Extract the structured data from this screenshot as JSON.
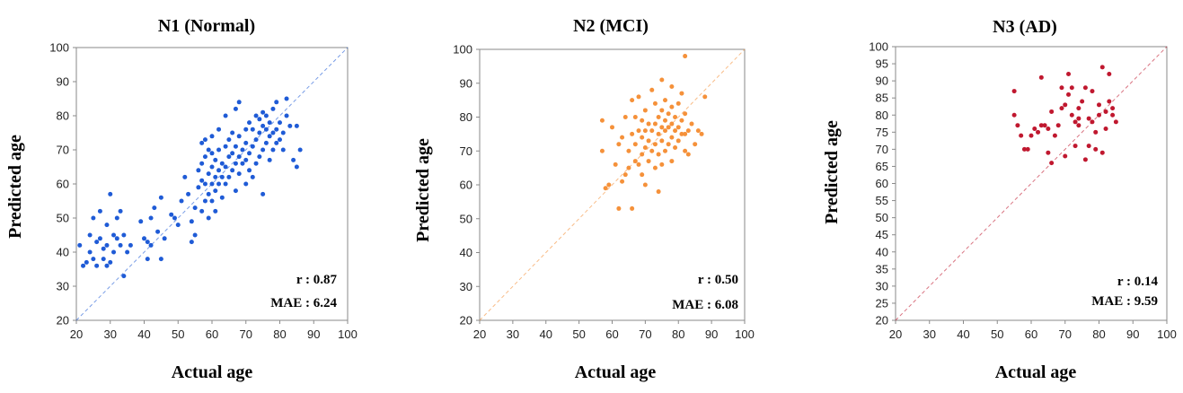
{
  "chart_data": [
    {
      "type": "scatter",
      "title": "N1 (Normal)",
      "xlabel": "Actual age",
      "ylabel": "Predicted age",
      "xlim": [
        20,
        100
      ],
      "ylim": [
        20,
        100
      ],
      "xticks": [
        20,
        30,
        40,
        50,
        60,
        70,
        80,
        90,
        100
      ],
      "yticks": [
        20,
        30,
        40,
        50,
        60,
        70,
        80,
        90,
        100
      ],
      "reference_line": "y = x (dashed)",
      "color": "#1f5bd6",
      "stats": {
        "r": "r : 0.87",
        "mae": "MAE : 6.24"
      },
      "points": [
        [
          21,
          42
        ],
        [
          22,
          36
        ],
        [
          23,
          37
        ],
        [
          24,
          40
        ],
        [
          24,
          45
        ],
        [
          25,
          50
        ],
        [
          25,
          38
        ],
        [
          26,
          43
        ],
        [
          26,
          36
        ],
        [
          27,
          52
        ],
        [
          27,
          44
        ],
        [
          28,
          41
        ],
        [
          28,
          38
        ],
        [
          29,
          42
        ],
        [
          29,
          48
        ],
        [
          29,
          36
        ],
        [
          30,
          57
        ],
        [
          30,
          37
        ],
        [
          31,
          40
        ],
        [
          31,
          45
        ],
        [
          32,
          50
        ],
        [
          32,
          44
        ],
        [
          33,
          52
        ],
        [
          33,
          42
        ],
        [
          34,
          45
        ],
        [
          34,
          33
        ],
        [
          35,
          40
        ],
        [
          36,
          42
        ],
        [
          39,
          49
        ],
        [
          40,
          44
        ],
        [
          41,
          38
        ],
        [
          41,
          43
        ],
        [
          42,
          50
        ],
        [
          42,
          42
        ],
        [
          43,
          53
        ],
        [
          44,
          46
        ],
        [
          45,
          38
        ],
        [
          45,
          56
        ],
        [
          46,
          44
        ],
        [
          48,
          51
        ],
        [
          49,
          50
        ],
        [
          50,
          48
        ],
        [
          51,
          55
        ],
        [
          52,
          62
        ],
        [
          53,
          57
        ],
        [
          54,
          49
        ],
        [
          54,
          43
        ],
        [
          55,
          45
        ],
        [
          55,
          53
        ],
        [
          56,
          59
        ],
        [
          56,
          64
        ],
        [
          57,
          52
        ],
        [
          57,
          61
        ],
        [
          57,
          66
        ],
        [
          57,
          72
        ],
        [
          58,
          55
        ],
        [
          58,
          60
        ],
        [
          58,
          68
        ],
        [
          58,
          73
        ],
        [
          59,
          50
        ],
        [
          59,
          57
        ],
        [
          59,
          63
        ],
        [
          59,
          70
        ],
        [
          60,
          55
        ],
        [
          60,
          60
        ],
        [
          60,
          65
        ],
        [
          60,
          69
        ],
        [
          60,
          74
        ],
        [
          61,
          52
        ],
        [
          61,
          58
        ],
        [
          61,
          62
        ],
        [
          61,
          67
        ],
        [
          62,
          60
        ],
        [
          62,
          64
        ],
        [
          62,
          70
        ],
        [
          62,
          76
        ],
        [
          63,
          56
        ],
        [
          63,
          62
        ],
        [
          63,
          66
        ],
        [
          64,
          60
        ],
        [
          64,
          65
        ],
        [
          64,
          71
        ],
        [
          64,
          80
        ],
        [
          65,
          62
        ],
        [
          65,
          68
        ],
        [
          65,
          73
        ],
        [
          66,
          64
        ],
        [
          66,
          69
        ],
        [
          66,
          75
        ],
        [
          67,
          58
        ],
        [
          67,
          66
        ],
        [
          67,
          71
        ],
        [
          67,
          82
        ],
        [
          68,
          63
        ],
        [
          68,
          68
        ],
        [
          68,
          74
        ],
        [
          68,
          84
        ],
        [
          69,
          66
        ],
        [
          69,
          70
        ],
        [
          70,
          60
        ],
        [
          70,
          67
        ],
        [
          70,
          72
        ],
        [
          70,
          76
        ],
        [
          71,
          64
        ],
        [
          71,
          69
        ],
        [
          71,
          78
        ],
        [
          72,
          62
        ],
        [
          72,
          71
        ],
        [
          72,
          76
        ],
        [
          73,
          66
        ],
        [
          73,
          73
        ],
        [
          73,
          80
        ],
        [
          74,
          68
        ],
        [
          74,
          75
        ],
        [
          74,
          79
        ],
        [
          75,
          57
        ],
        [
          75,
          70
        ],
        [
          75,
          77
        ],
        [
          75,
          81
        ],
        [
          76,
          72
        ],
        [
          76,
          76
        ],
        [
          76,
          80
        ],
        [
          77,
          67
        ],
        [
          77,
          74
        ],
        [
          77,
          78
        ],
        [
          78,
          70
        ],
        [
          78,
          75
        ],
        [
          78,
          82
        ],
        [
          79,
          72
        ],
        [
          79,
          76
        ],
        [
          79,
          84
        ],
        [
          80,
          73
        ],
        [
          80,
          78
        ],
        [
          81,
          70
        ],
        [
          81,
          75
        ],
        [
          82,
          80
        ],
        [
          82,
          85
        ],
        [
          83,
          77
        ],
        [
          84,
          67
        ],
        [
          85,
          65
        ],
        [
          85,
          77
        ],
        [
          86,
          70
        ]
      ]
    },
    {
      "type": "scatter",
      "title": "N2 (MCI)",
      "xlabel": "Actual age",
      "ylabel": "Predicted age",
      "xlim": [
        20,
        100
      ],
      "ylim": [
        20,
        100
      ],
      "xticks": [
        20,
        30,
        40,
        50,
        60,
        70,
        80,
        90,
        100
      ],
      "yticks": [
        20,
        30,
        40,
        50,
        60,
        70,
        80,
        90,
        100
      ],
      "reference_line": "y = x (dashed)",
      "color": "#f5913a",
      "stats": {
        "r": "r : 0.50",
        "mae": "MAE : 6.08"
      },
      "points": [
        [
          57,
          79
        ],
        [
          57,
          70
        ],
        [
          58,
          59
        ],
        [
          59,
          60
        ],
        [
          60,
          77
        ],
        [
          61,
          66
        ],
        [
          62,
          72
        ],
        [
          62,
          53
        ],
        [
          63,
          61
        ],
        [
          63,
          74
        ],
        [
          64,
          63
        ],
        [
          64,
          80
        ],
        [
          65,
          65
        ],
        [
          65,
          70
        ],
        [
          66,
          53
        ],
        [
          66,
          75
        ],
        [
          66,
          85
        ],
        [
          67,
          67
        ],
        [
          67,
          72
        ],
        [
          67,
          80
        ],
        [
          68,
          66
        ],
        [
          68,
          76
        ],
        [
          68,
          86
        ],
        [
          69,
          63
        ],
        [
          69,
          69
        ],
        [
          69,
          74
        ],
        [
          69,
          79
        ],
        [
          70,
          60
        ],
        [
          70,
          71
        ],
        [
          70,
          76
        ],
        [
          70,
          82
        ],
        [
          71,
          67
        ],
        [
          71,
          73
        ],
        [
          71,
          78
        ],
        [
          72,
          70
        ],
        [
          72,
          76
        ],
        [
          72,
          88
        ],
        [
          73,
          65
        ],
        [
          73,
          72
        ],
        [
          73,
          78
        ],
        [
          73,
          84
        ],
        [
          74,
          58
        ],
        [
          74,
          69
        ],
        [
          74,
          75
        ],
        [
          74,
          80
        ],
        [
          75,
          66
        ],
        [
          75,
          73
        ],
        [
          75,
          77
        ],
        [
          75,
          82
        ],
        [
          75,
          91
        ],
        [
          76,
          70
        ],
        [
          76,
          76
        ],
        [
          76,
          79
        ],
        [
          76,
          85
        ],
        [
          77,
          72
        ],
        [
          77,
          77
        ],
        [
          77,
          81
        ],
        [
          78,
          67
        ],
        [
          78,
          74
        ],
        [
          78,
          78
        ],
        [
          78,
          83
        ],
        [
          78,
          89
        ],
        [
          79,
          71
        ],
        [
          79,
          76
        ],
        [
          79,
          80
        ],
        [
          80,
          73
        ],
        [
          80,
          77
        ],
        [
          80,
          84
        ],
        [
          81,
          75
        ],
        [
          81,
          79
        ],
        [
          81,
          87
        ],
        [
          82,
          70
        ],
        [
          82,
          75
        ],
        [
          82,
          81
        ],
        [
          82,
          98
        ],
        [
          83,
          76
        ],
        [
          83,
          69
        ],
        [
          84,
          78
        ],
        [
          85,
          72
        ],
        [
          86,
          76
        ],
        [
          87,
          75
        ],
        [
          88,
          86
        ]
      ]
    },
    {
      "type": "scatter",
      "title": "N3 (AD)",
      "xlabel": "Actual age",
      "ylabel": "Predicted age",
      "xlim": [
        20,
        100
      ],
      "ylim": [
        20,
        100
      ],
      "xticks": [
        20,
        30,
        40,
        50,
        60,
        70,
        80,
        90,
        100
      ],
      "yticks": [
        20,
        25,
        30,
        35,
        40,
        45,
        50,
        55,
        60,
        65,
        70,
        75,
        80,
        85,
        90,
        95,
        100
      ],
      "reference_line": "y = x (dashed)",
      "color": "#c0182f",
      "stats": {
        "r": "r : 0.14",
        "mae": "MAE : 9.59"
      },
      "points": [
        [
          55,
          87
        ],
        [
          55,
          80
        ],
        [
          56,
          77
        ],
        [
          57,
          74
        ],
        [
          58,
          70
        ],
        [
          59,
          70
        ],
        [
          60,
          74
        ],
        [
          61,
          76
        ],
        [
          62,
          75
        ],
        [
          63,
          91
        ],
        [
          63,
          77
        ],
        [
          64,
          77
        ],
        [
          65,
          69
        ],
        [
          65,
          76
        ],
        [
          66,
          66
        ],
        [
          66,
          81
        ],
        [
          67,
          74
        ],
        [
          68,
          77
        ],
        [
          69,
          82
        ],
        [
          69,
          88
        ],
        [
          70,
          83
        ],
        [
          70,
          68
        ],
        [
          71,
          92
        ],
        [
          71,
          86
        ],
        [
          72,
          80
        ],
        [
          72,
          88
        ],
        [
          73,
          71
        ],
        [
          73,
          78
        ],
        [
          74,
          77
        ],
        [
          74,
          79
        ],
        [
          74,
          82
        ],
        [
          75,
          84
        ],
        [
          76,
          88
        ],
        [
          76,
          67
        ],
        [
          77,
          71
        ],
        [
          77,
          79
        ],
        [
          78,
          87
        ],
        [
          78,
          78
        ],
        [
          79,
          70
        ],
        [
          79,
          75
        ],
        [
          80,
          83
        ],
        [
          80,
          80
        ],
        [
          81,
          94
        ],
        [
          81,
          69
        ],
        [
          82,
          81
        ],
        [
          82,
          76
        ],
        [
          83,
          92
        ],
        [
          83,
          84
        ],
        [
          84,
          82
        ],
        [
          84,
          80
        ],
        [
          85,
          78
        ]
      ]
    }
  ]
}
